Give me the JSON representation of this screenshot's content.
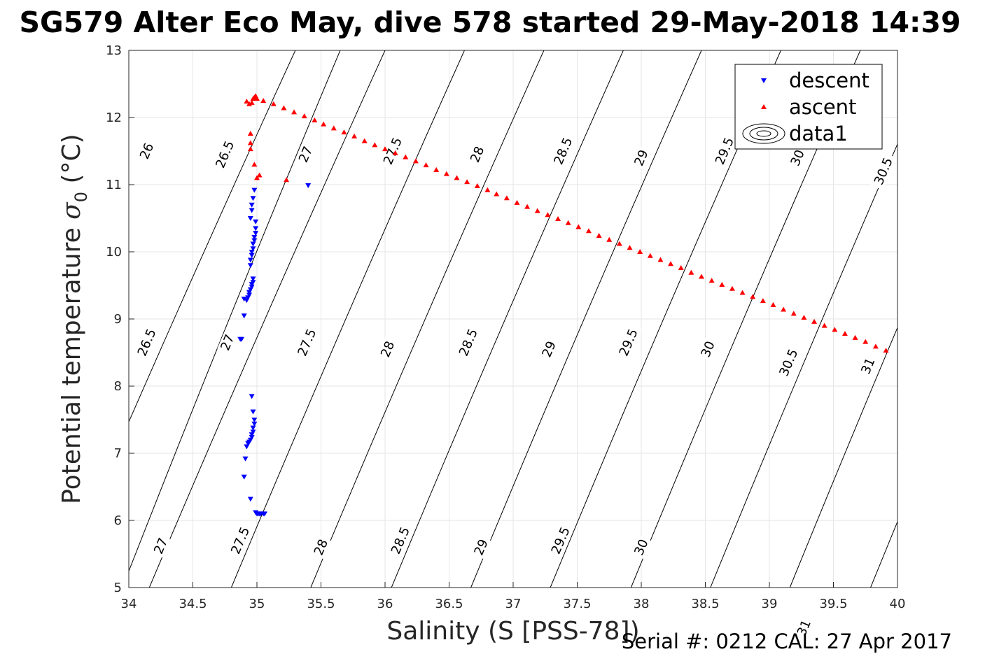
{
  "chart_data": {
    "type": "scatter",
    "title": "SG579 Alter Eco May, dive 578 started 29-May-2018 14:39",
    "xlabel": "Salinity (S [PSS-78])",
    "ylabel_main": "Potential temperature ",
    "ylabel_sigma": "σ",
    "ylabel_sub": "0",
    "ylabel_unit": " (°C)",
    "xlim": [
      34,
      40
    ],
    "ylim": [
      5,
      13
    ],
    "xticks": [
      "34",
      "34.5",
      "35",
      "35.5",
      "36",
      "36.5",
      "37",
      "37.5",
      "38",
      "38.5",
      "39",
      "39.5",
      "40"
    ],
    "yticks": [
      "5",
      "6",
      "7",
      "8",
      "9",
      "10",
      "11",
      "12",
      "13"
    ],
    "grid": true,
    "legend_position": "top-right",
    "series": [
      {
        "name": "descent",
        "marker": "triangle-down",
        "color": "#0000ff",
        "x": [
          35.4,
          34.98,
          34.97,
          34.96,
          34.96,
          34.95,
          34.99,
          34.99,
          34.99,
          34.98,
          34.98,
          34.97,
          34.97,
          34.96,
          34.96,
          34.95,
          34.95,
          34.97,
          34.97,
          34.96,
          34.96,
          34.95,
          34.94,
          34.94,
          34.93,
          34.92,
          34.9,
          34.88,
          34.9,
          34.87,
          34.96,
          34.97,
          34.98,
          34.98,
          34.97,
          34.97,
          34.96,
          34.96,
          34.95,
          34.94,
          34.93,
          34.92,
          34.91,
          34.9,
          34.95,
          34.99,
          35.0,
          35.01,
          35.02,
          35.03,
          35.05,
          35.06
        ],
        "y": [
          10.99,
          10.92,
          10.8,
          10.7,
          10.62,
          10.5,
          10.45,
          10.35,
          10.28,
          10.22,
          10.17,
          10.12,
          10.05,
          10.0,
          9.95,
          9.88,
          9.8,
          9.6,
          9.55,
          9.52,
          9.48,
          9.44,
          9.4,
          9.36,
          9.32,
          9.28,
          9.05,
          8.7,
          9.3,
          8.7,
          7.85,
          7.62,
          7.5,
          7.44,
          7.38,
          7.32,
          7.28,
          7.24,
          7.2,
          7.17,
          7.15,
          7.1,
          6.92,
          6.65,
          6.32,
          6.12,
          6.1,
          6.1,
          6.1,
          6.1,
          6.1,
          6.1
        ]
      },
      {
        "name": "ascent",
        "marker": "triangle-up",
        "color": "#ff0000",
        "x": [
          34.92,
          34.94,
          34.96,
          34.97,
          34.98,
          34.99,
          35.0,
          34.95,
          34.95,
          34.95,
          34.98,
          35.0,
          35.02,
          35.23,
          35.05,
          35.13,
          35.21,
          35.29,
          35.37,
          35.45,
          35.52,
          35.6,
          35.68,
          35.76,
          35.84,
          35.92,
          36.0,
          36.08,
          36.16,
          36.24,
          36.32,
          36.4,
          36.48,
          36.56,
          36.64,
          36.72,
          36.8,
          36.87,
          36.95,
          37.03,
          37.11,
          37.19,
          37.27,
          37.35,
          37.43,
          37.51,
          37.59,
          37.67,
          37.75,
          37.83,
          37.91,
          37.99,
          38.07,
          38.15,
          38.23,
          38.31,
          38.39,
          38.47,
          38.55,
          38.63,
          38.71,
          38.79,
          38.87,
          38.95,
          39.03,
          39.11,
          39.19,
          39.27,
          39.35,
          39.43,
          39.51,
          39.59,
          39.67,
          39.75,
          39.83,
          39.91
        ],
        "y": [
          12.24,
          12.2,
          12.22,
          12.28,
          12.3,
          12.32,
          12.28,
          11.76,
          11.62,
          11.53,
          11.3,
          11.1,
          11.14,
          11.07,
          12.25,
          12.2,
          12.14,
          12.08,
          12.02,
          11.96,
          11.9,
          11.84,
          11.78,
          11.72,
          11.65,
          11.59,
          11.53,
          11.47,
          11.41,
          11.35,
          11.29,
          11.22,
          11.16,
          11.1,
          11.04,
          10.98,
          10.92,
          10.86,
          10.8,
          10.73,
          10.67,
          10.61,
          10.55,
          10.49,
          10.43,
          10.37,
          10.31,
          10.24,
          10.18,
          10.12,
          10.06,
          10.0,
          9.94,
          9.88,
          9.82,
          9.76,
          9.69,
          9.63,
          9.57,
          9.51,
          9.45,
          9.39,
          9.33,
          9.27,
          9.21,
          9.14,
          9.08,
          9.02,
          8.96,
          8.9,
          8.84,
          8.78,
          8.72,
          8.66,
          8.59,
          8.53
        ]
      },
      {
        "name": "data1",
        "type": "contour",
        "color": "#000000"
      }
    ],
    "density_contours": [
      {
        "sigma": 26,
        "x_at_y5": 33.44,
        "x_at_y13": 35.3
      },
      {
        "sigma": 26.5,
        "x_at_y5": 33.95,
        "x_at_y13": 35.65
      },
      {
        "sigma": 27,
        "x_at_y5": 34.16,
        "x_at_y13": 36.0
      },
      {
        "sigma": 27.5,
        "x_at_y5": 34.8,
        "x_at_y13": 36.62
      },
      {
        "sigma": 28,
        "x_at_y5": 35.42,
        "x_at_y13": 37.24
      },
      {
        "sigma": 28.5,
        "x_at_y5": 36.05,
        "x_at_y13": 37.86
      },
      {
        "sigma": 29,
        "x_at_y5": 36.67,
        "x_at_y13": 38.47
      },
      {
        "sigma": 29.5,
        "x_at_y5": 37.29,
        "x_at_y13": 39.09
      },
      {
        "sigma": 30,
        "x_at_y5": 37.92,
        "x_at_y13": 39.71
      },
      {
        "sigma": 30.5,
        "x_at_y5": 38.54,
        "x_at_y13": 40.32
      },
      {
        "sigma": 31,
        "x_at_y5": 39.16,
        "x_at_y13": 40.93
      },
      {
        "sigma": 31.5,
        "x_at_y5": 39.79,
        "x_at_y13": 41.56
      }
    ],
    "contour_labels": [
      {
        "text": "26",
        "x": 34.14,
        "y": 11.5
      },
      {
        "text": "26.5",
        "x": 34.75,
        "y": 11.45
      },
      {
        "text": "27",
        "x": 35.38,
        "y": 11.45
      },
      {
        "text": "27.5",
        "x": 36.06,
        "y": 11.5
      },
      {
        "text": "28",
        "x": 36.72,
        "y": 11.45
      },
      {
        "text": "28.5",
        "x": 37.39,
        "y": 11.5
      },
      {
        "text": "29",
        "x": 38.0,
        "y": 11.4
      },
      {
        "text": "29.5",
        "x": 38.65,
        "y": 11.5
      },
      {
        "text": "30",
        "x": 39.22,
        "y": 11.4
      },
      {
        "text": "30.5",
        "x": 39.89,
        "y": 11.2
      },
      {
        "text": "26.5",
        "x": 34.14,
        "y": 8.65
      },
      {
        "text": "27",
        "x": 34.77,
        "y": 8.65
      },
      {
        "text": "27.5",
        "x": 35.39,
        "y": 8.65
      },
      {
        "text": "28",
        "x": 36.02,
        "y": 8.55
      },
      {
        "text": "28.5",
        "x": 36.65,
        "y": 8.65
      },
      {
        "text": "29",
        "x": 37.28,
        "y": 8.55
      },
      {
        "text": "29.5",
        "x": 37.9,
        "y": 8.65
      },
      {
        "text": "30",
        "x": 38.52,
        "y": 8.55
      },
      {
        "text": "30.5",
        "x": 39.15,
        "y": 8.35
      },
      {
        "text": "31",
        "x": 39.77,
        "y": 8.3
      },
      {
        "text": "27",
        "x": 34.25,
        "y": 5.62
      },
      {
        "text": "27.5",
        "x": 34.87,
        "y": 5.7
      },
      {
        "text": "28",
        "x": 35.5,
        "y": 5.6
      },
      {
        "text": "28.5",
        "x": 36.12,
        "y": 5.7
      },
      {
        "text": "29",
        "x": 36.75,
        "y": 5.6
      },
      {
        "text": "29.5",
        "x": 37.37,
        "y": 5.7
      },
      {
        "text": "30",
        "x": 38.0,
        "y": 5.6
      },
      {
        "text": "31",
        "x": 39.27,
        "y": 4.4
      }
    ]
  },
  "footer": {
    "serial_text": "Serial #: 0212  CAL: 27 Apr 2017"
  }
}
